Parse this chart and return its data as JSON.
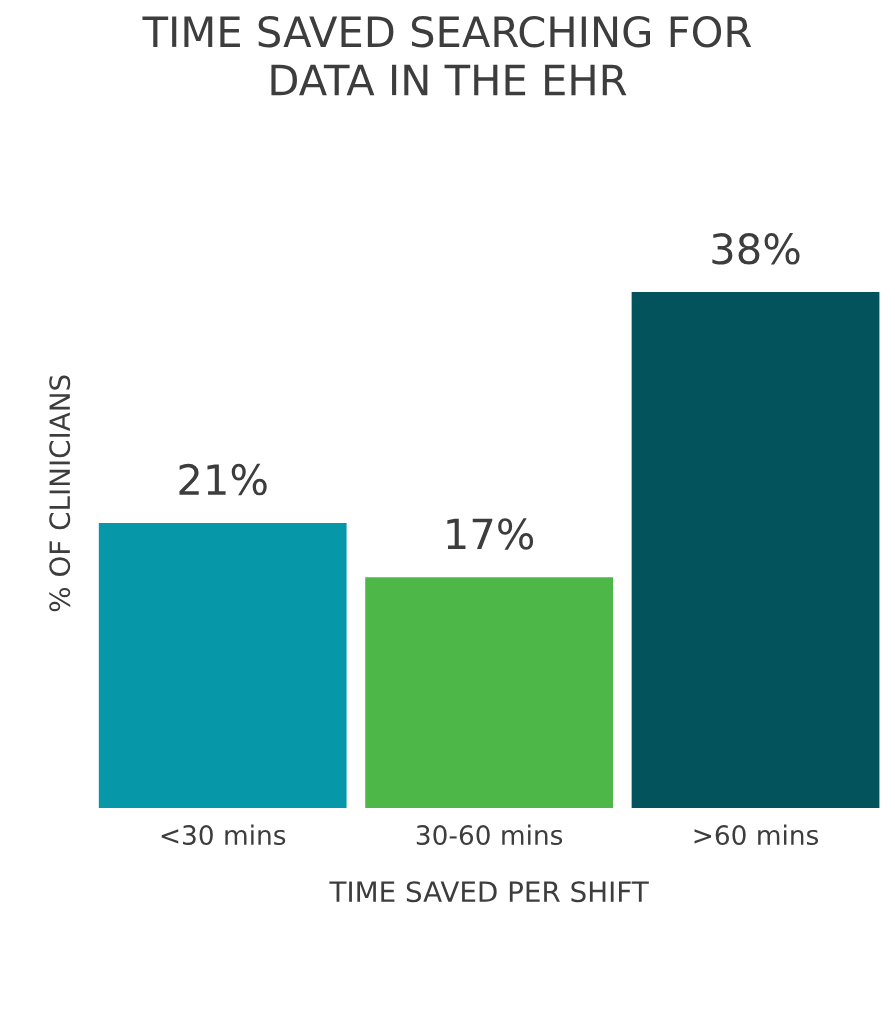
{
  "chart_data": {
    "type": "bar",
    "title": "TIME SAVED SEARCHING FOR\nDATA IN THE EHR",
    "xlabel": "TIME SAVED PER SHIFT",
    "ylabel": "% OF CLINICIANS",
    "categories": [
      "<30 mins",
      "30-60 mins",
      ">60 mins"
    ],
    "values": [
      21,
      17,
      38
    ],
    "colors": [
      "#0698a8",
      "#4db748",
      "#03535d"
    ],
    "value_labels": [
      "21%",
      "17%",
      "38%"
    ],
    "grid": false,
    "legend": false
  }
}
